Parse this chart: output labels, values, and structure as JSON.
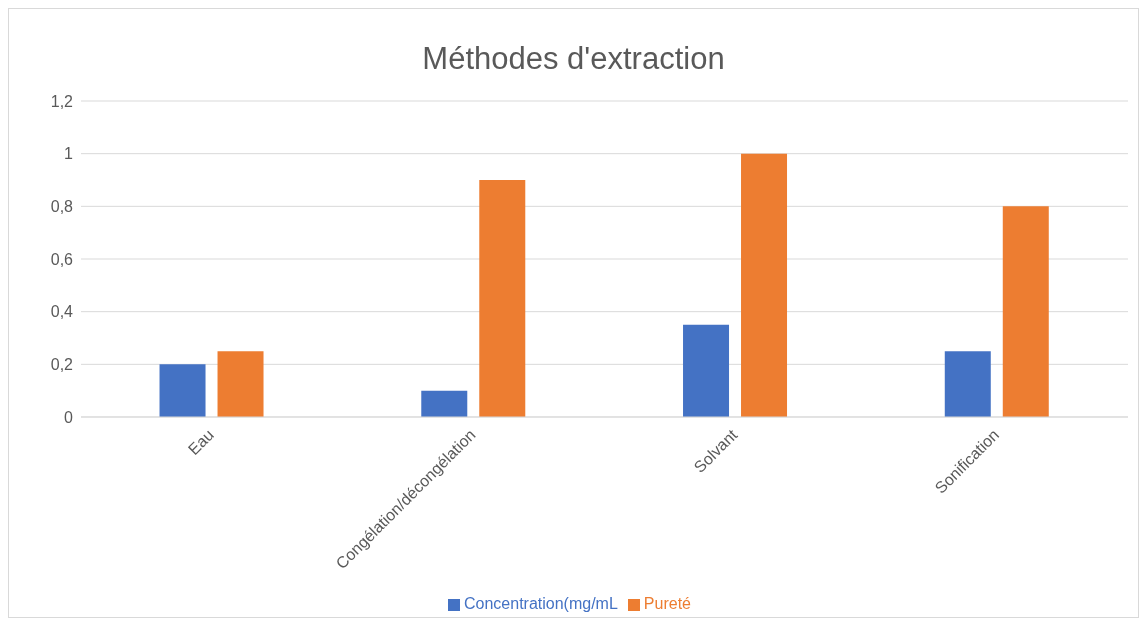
{
  "chart_data": {
    "type": "bar",
    "title": "Méthodes d'extraction",
    "categories": [
      "Eau",
      "Congélation/décongélation",
      "Solvant",
      "Sonification"
    ],
    "series": [
      {
        "name": "Concentration(mg/mL",
        "color": "#4472c4",
        "values": [
          0.2,
          0.1,
          0.35,
          0.25
        ]
      },
      {
        "name": "Pureté",
        "color": "#ed7d31",
        "values": [
          0.25,
          0.9,
          1,
          0.8
        ]
      }
    ],
    "ylim": [
      0,
      1.2
    ],
    "yticks": [
      0,
      {
        "value": 0.2,
        "label": "0,2"
      },
      {
        "value": 0.4,
        "label": "0,4"
      },
      {
        "value": 0.6,
        "label": "0,6"
      },
      {
        "value": 0.8,
        "label": "0,8"
      },
      1,
      {
        "value": 1.2,
        "label": "1,2"
      }
    ],
    "grid": "y",
    "legend": "bottom"
  }
}
